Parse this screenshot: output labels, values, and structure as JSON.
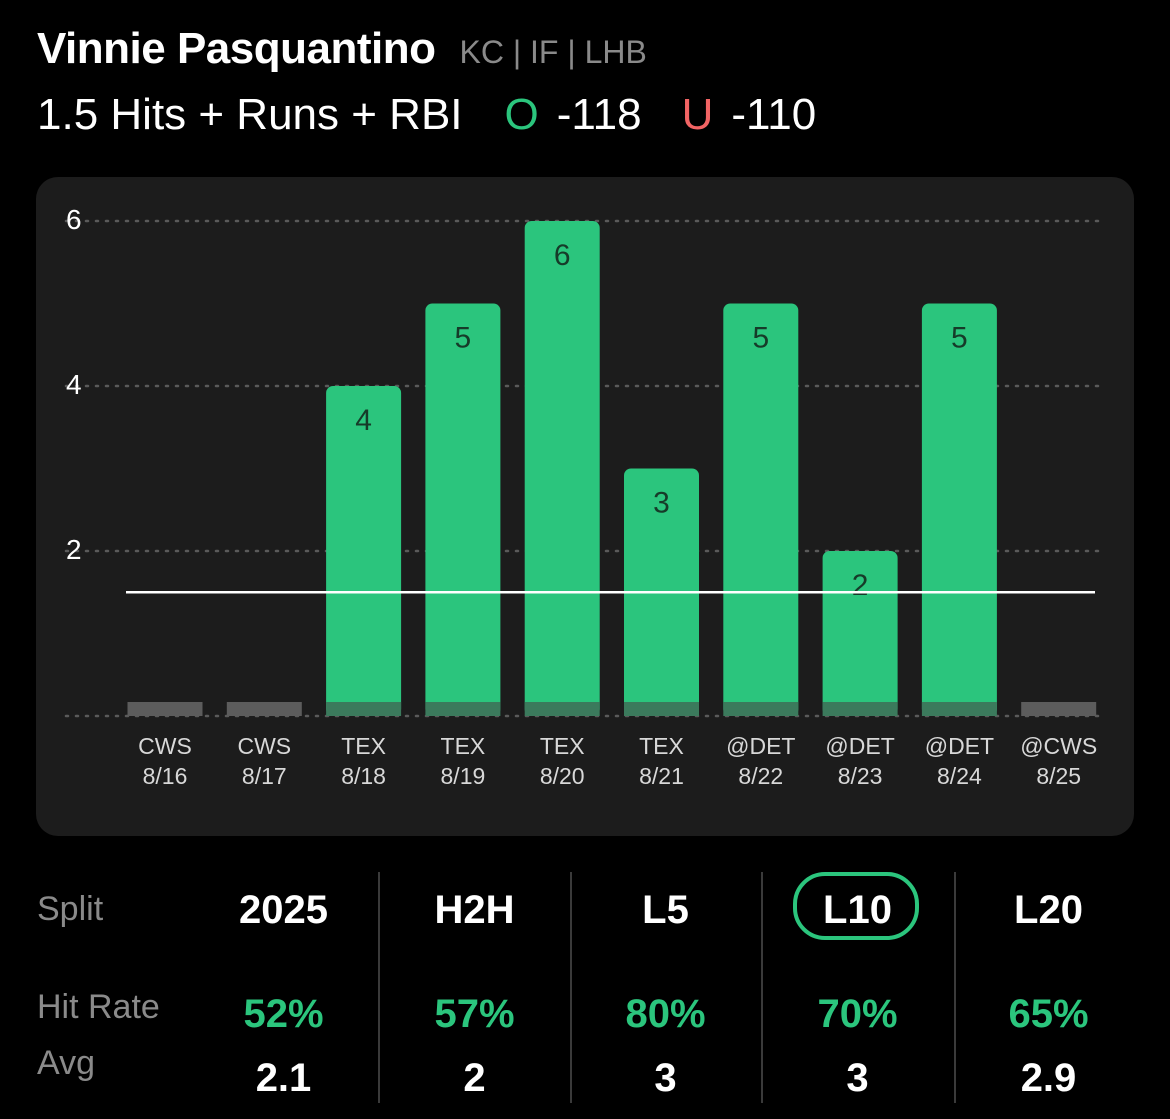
{
  "header": {
    "player_name": "Vinnie Pasquantino",
    "player_meta": "KC | IF | LHB",
    "line_label": "1.5 Hits + Runs + RBI",
    "over_letter": "O",
    "over_odds": "-118",
    "under_letter": "U",
    "under_odds": "-110"
  },
  "colors": {
    "accent_green": "#2bc57d",
    "under_red": "#f26464",
    "zero_bar_gray": "#5c5c5c",
    "card_bg": "#1c1c1c"
  },
  "chart_data": {
    "type": "bar",
    "categories": [
      "CWS 8/16",
      "CWS 8/17",
      "TEX 8/18",
      "TEX 8/19",
      "TEX 8/20",
      "TEX 8/21",
      "@DET 8/22",
      "@DET 8/23",
      "@DET 8/24",
      "@CWS 8/25"
    ],
    "opponents": [
      "CWS",
      "CWS",
      "TEX",
      "TEX",
      "TEX",
      "TEX",
      "@DET",
      "@DET",
      "@DET",
      "@CWS"
    ],
    "dates": [
      "8/16",
      "8/17",
      "8/18",
      "8/19",
      "8/20",
      "8/21",
      "8/22",
      "8/23",
      "8/24",
      "8/25"
    ],
    "values": [
      0,
      0,
      4,
      5,
      6,
      3,
      5,
      2,
      5,
      0
    ],
    "data_labels": [
      "",
      "",
      "4",
      "5",
      "6",
      "3",
      "5",
      "2",
      "5",
      ""
    ],
    "yticks": [
      "2",
      "4",
      "6"
    ],
    "ytick_values": [
      2,
      4,
      6
    ],
    "ylim": [
      0,
      6
    ],
    "threshold_line": 1.5,
    "grid": true
  },
  "stats": {
    "split_label": "Split",
    "hit_rate_label": "Hit Rate",
    "avg_label": "Avg",
    "columns": [
      {
        "split": "2025",
        "hit_rate": "52%",
        "avg": "2.1",
        "selected": false
      },
      {
        "split": "H2H",
        "hit_rate": "57%",
        "avg": "2",
        "selected": false
      },
      {
        "split": "L5",
        "hit_rate": "80%",
        "avg": "3",
        "selected": false
      },
      {
        "split": "L10",
        "hit_rate": "70%",
        "avg": "3",
        "selected": true
      },
      {
        "split": "L20",
        "hit_rate": "65%",
        "avg": "2.9",
        "selected": false
      }
    ]
  }
}
